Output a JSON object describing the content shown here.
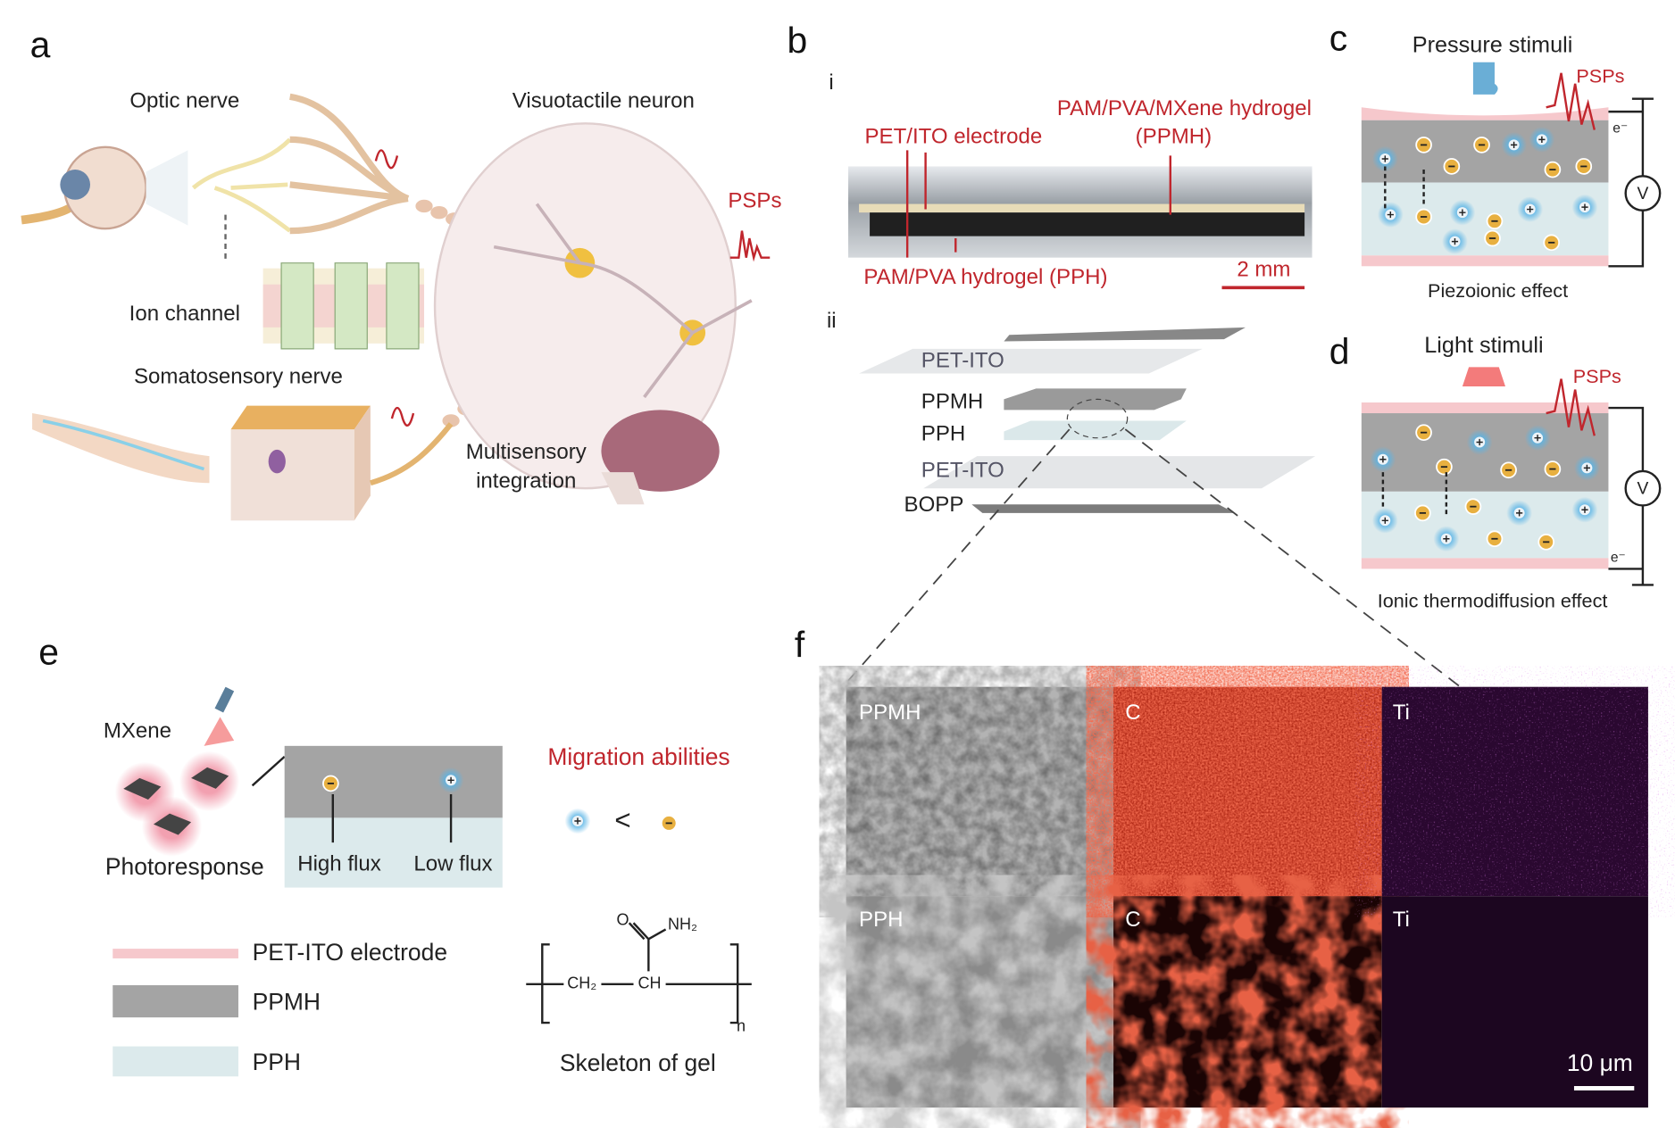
{
  "panels": {
    "a": {
      "label": "a",
      "optic_nerve": "Optic nerve",
      "visuotactile_neuron": "Visuotactile neuron",
      "psps": "PSPs",
      "ion_channel": "Ion channel",
      "somatosensory_nerve": "Somatosensory nerve",
      "multisensory_integration": [
        "Multisensory",
        "integration"
      ]
    },
    "b": {
      "label": "b",
      "sub_i": "i",
      "pet_ito_electrode": "PET/ITO electrode",
      "ppmh_hydrogel": [
        "PAM/PVA/MXene hydrogel",
        "(PPMH)"
      ],
      "pph_hydrogel": "PAM/PVA hydrogel (PPH)",
      "scale_bar": "2 mm",
      "sub_ii": "ii",
      "layers": [
        "PET-ITO",
        "PPMH",
        "PPH",
        "PET-ITO",
        "BOPP"
      ]
    },
    "c": {
      "label": "c",
      "title": "Pressure stimuli",
      "psps": "PSPs",
      "electron": "e⁻",
      "voltmeter": "V",
      "caption": "Piezoionic effect"
    },
    "d": {
      "label": "d",
      "title": "Light stimuli",
      "psps": "PSPs",
      "electron": "e⁻",
      "voltmeter": "V",
      "caption": "Ionic thermodiffusion effect"
    },
    "e": {
      "label": "e",
      "mxene": "MXene",
      "photoresponse": "Photoresponse",
      "high_flux": "High flux",
      "low_flux": "Low flux",
      "migration_abilities": "Migration abilities",
      "less_than": "<",
      "legend": [
        "PET-ITO electrode",
        "PPMH",
        "PPH"
      ],
      "chem": {
        "o": "O",
        "nh2": "NH₂",
        "ch2": "CH₂",
        "ch": "CH",
        "n": "n"
      },
      "skeleton_caption": "Skeleton of gel"
    },
    "f": {
      "label": "f",
      "rows": [
        {
          "name": "PPMH",
          "maps": [
            "C",
            "Ti"
          ]
        },
        {
          "name": "PPH",
          "maps": [
            "C",
            "Ti"
          ]
        }
      ],
      "scale_bar": "10 μm"
    }
  }
}
